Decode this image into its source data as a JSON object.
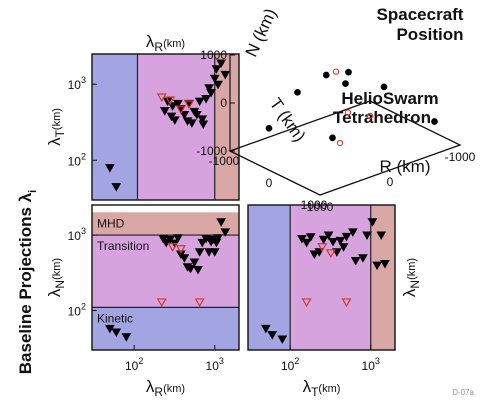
{
  "figure": {
    "y_title": "Baseline Projections λ",
    "y_title_sub": "i",
    "corner_tag": "D-07a"
  },
  "colors": {
    "kinetic": "#a3a4e2",
    "transition": "#d6a3de",
    "mhd": "#d8a7a6",
    "helioswarm": "#000000",
    "tetrahedron": "#d23a33"
  },
  "chart_data": [
    {
      "id": "lambdaR_vs_lambdaT",
      "type": "scatter",
      "x_scale": "log",
      "y_scale": "log",
      "xlim": [
        30,
        2000
      ],
      "ylim": [
        30,
        2500
      ],
      "xlabel": "λ",
      "xlabel_sub": "R",
      "xlabel_unit": "(km)",
      "ylabel": "λ",
      "ylabel_sub": "T",
      "ylabel_unit": "(km)",
      "y_ticks": [
        {
          "value": 100,
          "label": "10",
          "exp": "2"
        },
        {
          "value": 1000,
          "label": "10",
          "exp": "3"
        }
      ],
      "x_ticks": [],
      "bands_axis": "x",
      "bands": [
        {
          "name": "Kinetic",
          "from": 30,
          "to": 110
        },
        {
          "name": "Transition",
          "from": 110,
          "to": 1000
        },
        {
          "name": "MHD",
          "from": 1000,
          "to": 2000
        }
      ],
      "series": [
        {
          "name": "HelioSwarm",
          "marker": "filled-triangle",
          "points": [
            [
              50,
              80
            ],
            [
              60,
              45
            ],
            [
              240,
              450
            ],
            [
              260,
              600
            ],
            [
              290,
              380
            ],
            [
              300,
              520
            ],
            [
              320,
              340
            ],
            [
              350,
              560
            ],
            [
              380,
              480
            ],
            [
              420,
              400
            ],
            [
              460,
              330
            ],
            [
              480,
              560
            ],
            [
              520,
              310
            ],
            [
              560,
              440
            ],
            [
              600,
              400
            ],
            [
              650,
              600
            ],
            [
              700,
              350
            ],
            [
              720,
              300
            ],
            [
              780,
              650
            ],
            [
              850,
              900
            ],
            [
              900,
              780
            ],
            [
              1000,
              1200
            ],
            [
              1050,
              1600
            ],
            [
              1100,
              1000
            ],
            [
              1200,
              1900
            ],
            [
              1350,
              1350
            ]
          ]
        },
        {
          "name": "Tetrahedron",
          "marker": "open-triangle",
          "points": [
            [
              220,
              680
            ],
            [
              280,
              620
            ],
            [
              380,
              470
            ],
            [
              480,
              550
            ]
          ]
        }
      ]
    },
    {
      "id": "lambdaR_vs_lambdaN",
      "type": "scatter",
      "x_scale": "log",
      "y_scale": "log",
      "xlim": [
        30,
        2000
      ],
      "ylim": [
        30,
        2500
      ],
      "xlabel": "λ",
      "xlabel_sub": "R",
      "xlabel_unit": "(km)",
      "ylabel": "λ",
      "ylabel_sub": "N",
      "ylabel_unit": "(km)",
      "y_ticks": [
        {
          "value": 100,
          "label": "10",
          "exp": "2"
        },
        {
          "value": 1000,
          "label": "10",
          "exp": "3"
        }
      ],
      "x_ticks": [
        {
          "value": 100,
          "label": "10",
          "exp": "2"
        },
        {
          "value": 1000,
          "label": "10",
          "exp": "3"
        }
      ],
      "bands_axis": "y",
      "bands": [
        {
          "name": "Kinetic",
          "from": 30,
          "to": 110
        },
        {
          "name": "Transition",
          "from": 110,
          "to": 1000
        },
        {
          "name": "MHD",
          "from": 1000,
          "to": 2000
        }
      ],
      "series": [
        {
          "name": "HelioSwarm",
          "marker": "filled-triangle",
          "points": [
            [
              50,
              58
            ],
            [
              60,
              52
            ],
            [
              80,
              45
            ],
            [
              230,
              900
            ],
            [
              250,
              800
            ],
            [
              280,
              880
            ],
            [
              320,
              780
            ],
            [
              350,
              920
            ],
            [
              380,
              560
            ],
            [
              420,
              500
            ],
            [
              460,
              380
            ],
            [
              500,
              360
            ],
            [
              560,
              440
            ],
            [
              620,
              350
            ],
            [
              650,
              600
            ],
            [
              700,
              800
            ],
            [
              780,
              900
            ],
            [
              850,
              600
            ],
            [
              900,
              820
            ],
            [
              950,
              880
            ],
            [
              1000,
              600
            ],
            [
              1050,
              800
            ],
            [
              1100,
              920
            ],
            [
              1200,
              1500
            ],
            [
              1350,
              1100
            ]
          ]
        },
        {
          "name": "Tetrahedron",
          "marker": "open-triangle",
          "points": [
            [
              220,
              130
            ],
            [
              300,
              700
            ],
            [
              380,
              660
            ],
            [
              650,
              130
            ]
          ]
        }
      ]
    },
    {
      "id": "lambdaT_vs_lambdaN",
      "type": "scatter",
      "x_scale": "log",
      "y_scale": "log",
      "xlim": [
        30,
        2000
      ],
      "ylim": [
        30,
        2500
      ],
      "xlabel": "λ",
      "xlabel_sub": "T",
      "xlabel_unit": "(km)",
      "ylabel": "λ",
      "ylabel_sub": "N",
      "ylabel_unit": "(km)",
      "x_ticks": [
        {
          "value": 100,
          "label": "10",
          "exp": "2"
        },
        {
          "value": 1000,
          "label": "10",
          "exp": "3"
        }
      ],
      "y_ticks": [],
      "bands_axis": "x",
      "bands": [
        {
          "name": "Kinetic",
          "from": 30,
          "to": 100
        },
        {
          "name": "Transition",
          "from": 100,
          "to": 1000
        },
        {
          "name": "MHD",
          "from": 1000,
          "to": 2000
        }
      ],
      "series": [
        {
          "name": "HelioSwarm",
          "marker": "filled-triangle",
          "points": [
            [
              50,
              58
            ],
            [
              60,
              48
            ],
            [
              80,
              42
            ],
            [
              140,
              900
            ],
            [
              160,
              800
            ],
            [
              180,
              950
            ],
            [
              200,
              560
            ],
            [
              230,
              600
            ],
            [
              260,
              880
            ],
            [
              300,
              1000
            ],
            [
              340,
              820
            ],
            [
              380,
              600
            ],
            [
              420,
              850
            ],
            [
              460,
              700
            ],
            [
              500,
              960
            ],
            [
              600,
              1100
            ],
            [
              650,
              460
            ],
            [
              800,
              500
            ],
            [
              900,
              1000
            ],
            [
              1050,
              1500
            ],
            [
              1200,
              400
            ],
            [
              1350,
              1000
            ],
            [
              1500,
              420
            ]
          ]
        },
        {
          "name": "Tetrahedron",
          "marker": "open-triangle",
          "points": [
            [
              160,
              130
            ],
            [
              250,
              700
            ],
            [
              320,
              580
            ],
            [
              500,
              130
            ]
          ]
        }
      ]
    },
    {
      "id": "spacecraft_position",
      "type": "scatter",
      "title_lines": [
        "Spacecraft",
        "Position"
      ],
      "axes": [
        {
          "label": "N (km)",
          "ticks": [
            "1000",
            "0",
            "-1000"
          ]
        },
        {
          "label": "T (km)",
          "ticks": [
            "-1000",
            "0",
            "1000"
          ]
        },
        {
          "label": "R (km)",
          "ticks": [
            "1000",
            "0",
            "-1000"
          ]
        }
      ],
      "legend": [
        "HelioSwarm",
        "Tetrahedron"
      ],
      "series": [
        {
          "name": "HelioSwarm",
          "marker": "filled-circle",
          "points": [
            [
              300,
              50,
              700
            ],
            [
              500,
              500,
              -300
            ],
            [
              -200,
              -300,
              100
            ],
            [
              -300,
              400,
              300
            ],
            [
              -500,
              -700,
              0
            ],
            [
              100,
              -900,
              -200
            ],
            [
              700,
              -600,
              -500
            ],
            [
              -700,
              900,
              -400
            ]
          ]
        },
        {
          "name": "Tetrahedron",
          "marker": "open-circle",
          "points": [
            [
              0,
              -200,
              500
            ],
            [
              -100,
              400,
              -200
            ],
            [
              200,
              200,
              -700
            ],
            [
              -300,
              -400,
              -600
            ]
          ]
        }
      ]
    }
  ]
}
